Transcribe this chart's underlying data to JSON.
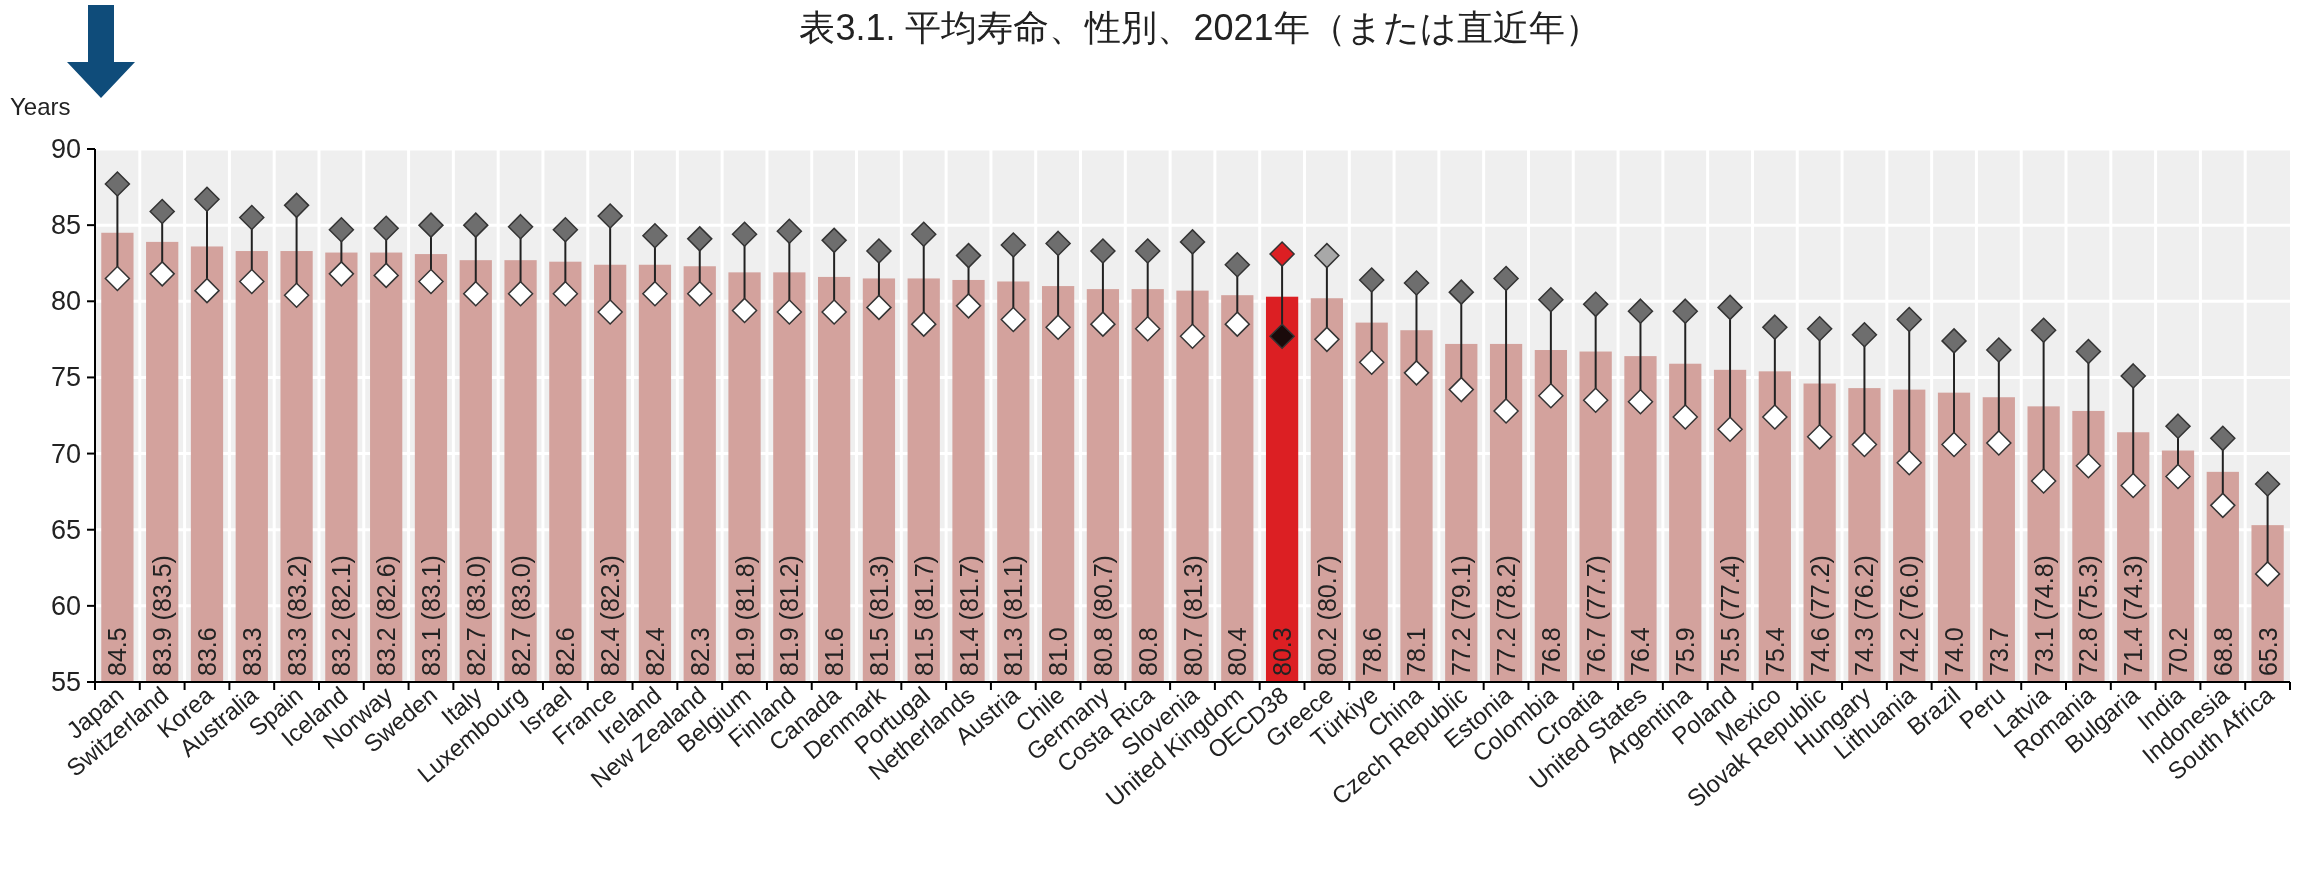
{
  "chart_data": {
    "type": "bar",
    "title": "表3.1. 平均寿命、性別、2021年（または直近年）",
    "ylabel": "Years",
    "categories": [
      "Japan",
      "Switzerland",
      "Korea",
      "Australia",
      "Spain",
      "Iceland",
      "Norway",
      "Sweden",
      "Italy",
      "Luxembourg",
      "Israel",
      "France",
      "Ireland",
      "New Zealand",
      "Belgium",
      "Finland",
      "Canada",
      "Denmark",
      "Portugal",
      "Netherlands",
      "Austria",
      "Chile",
      "Germany",
      "Costa Rica",
      "Slovenia",
      "United Kingdom",
      "OECD38",
      "Greece",
      "Türkiye",
      "China",
      "Czech Republic",
      "Estonia",
      "Colombia",
      "Croatia",
      "United States",
      "Argentina",
      "Poland",
      "Mexico",
      "Slovak Republic",
      "Hungary",
      "Lithuania",
      "Brazil",
      "Peru",
      "Latvia",
      "Romania",
      "Bulgaria",
      "India",
      "Indonesia",
      "South Africa"
    ],
    "ylim": [
      55,
      90
    ],
    "yticks": [
      55,
      60,
      65,
      70,
      75,
      80,
      85,
      90
    ],
    "grid": true,
    "marker": "diamond",
    "series": [
      {
        "colors": [
          "#d3a29d",
          "#d3a29d",
          "#d3a29d",
          "#d3a29d",
          "#d3a29d",
          "#d3a29d",
          "#d3a29d",
          "#d3a29d",
          "#d3a29d",
          "#d3a29d",
          "#d3a29d",
          "#d3a29d",
          "#d3a29d",
          "#d3a29d",
          "#d3a29d",
          "#d3a29d",
          "#d3a29d",
          "#d3a29d",
          "#d3a29d",
          "#d3a29d",
          "#d3a29d",
          "#d3a29d",
          "#d3a29d",
          "#d3a29d",
          "#d3a29d",
          "#d3a29d",
          "#dc1f23",
          "#d3a29d",
          "#d3a29d",
          "#d3a29d",
          "#d3a29d",
          "#d3a29d",
          "#d3a29d",
          "#d3a29d",
          "#d3a29d",
          "#d3a29d",
          "#d3a29d",
          "#d3a29d",
          "#d3a29d",
          "#d3a29d",
          "#d3a29d",
          "#d3a29d",
          "#d3a29d",
          "#d3a29d",
          "#d3a29d",
          "#d3a29d",
          "#d3a29d",
          "#d3a29d",
          "#d3a29d"
        ],
        "values": [
          84.5,
          83.9,
          83.6,
          83.3,
          83.3,
          83.2,
          83.2,
          83.1,
          82.7,
          82.7,
          82.6,
          82.4,
          82.4,
          82.3,
          81.9,
          81.9,
          81.6,
          81.5,
          81.5,
          81.4,
          81.3,
          81.0,
          80.8,
          80.8,
          80.7,
          80.4,
          80.3,
          80.2,
          78.6,
          78.1,
          77.2,
          77.2,
          76.8,
          76.7,
          76.4,
          75.9,
          75.5,
          75.4,
          74.6,
          74.3,
          74.2,
          74.0,
          73.7,
          73.1,
          72.8,
          71.4,
          70.2,
          68.8,
          65.3
        ],
        "value_labels": [
          "84.5",
          "83.9 (83.5)",
          "83.6",
          "83.3",
          "83.3 (83.2)",
          "83.2 (82.1)",
          "83.2 (82.6)",
          "83.1 (83.1)",
          "82.7 (83.0)",
          "82.7 (83.0)",
          "82.6",
          "82.4 (82.3)",
          "82.4",
          "82.3",
          "81.9 (81.8)",
          "81.9 (81.2)",
          "81.6",
          "81.5 (81.3)",
          "81.5 (81.7)",
          "81.4 (81.7)",
          "81.3 (81.1)",
          "81.0",
          "80.8 (80.7)",
          "80.8",
          "80.7 (81.3)",
          "80.4",
          "80.3",
          "80.2 (80.7)",
          "78.6",
          "78.1",
          "77.2 (79.1)",
          "77.2 (78.2)",
          "76.8",
          "76.7 (77.7)",
          "76.4",
          "75.9",
          "75.5 (77.4)",
          "75.4",
          "74.6 (77.2)",
          "74.3 (76.2)",
          "74.2 (76.0)",
          "74.0",
          "73.7",
          "73.1 (74.8)",
          "72.8 (75.3)",
          "71.4 (74.3)",
          "70.2",
          "68.8",
          "65.3"
        ]
      },
      {
        "type": "scatter",
        "colors": [
          "#6e6e6e",
          "#6e6e6e",
          "#6e6e6e",
          "#6e6e6e",
          "#6e6e6e",
          "#6e6e6e",
          "#6e6e6e",
          "#6e6e6e",
          "#6e6e6e",
          "#6e6e6e",
          "#6e6e6e",
          "#6e6e6e",
          "#6e6e6e",
          "#6e6e6e",
          "#6e6e6e",
          "#6e6e6e",
          "#6e6e6e",
          "#6e6e6e",
          "#6e6e6e",
          "#6e6e6e",
          "#6e6e6e",
          "#6e6e6e",
          "#6e6e6e",
          "#6e6e6e",
          "#6e6e6e",
          "#6e6e6e",
          "#dc1f23",
          "#a8a8a8",
          "#6e6e6e",
          "#6e6e6e",
          "#6e6e6e",
          "#6e6e6e",
          "#6e6e6e",
          "#6e6e6e",
          "#6e6e6e",
          "#6e6e6e",
          "#6e6e6e",
          "#6e6e6e",
          "#6e6e6e",
          "#6e6e6e",
          "#6e6e6e",
          "#6e6e6e",
          "#6e6e6e",
          "#6e6e6e",
          "#6e6e6e",
          "#6e6e6e",
          "#6e6e6e",
          "#6e6e6e",
          "#6e6e6e"
        ],
        "values": [
          87.7,
          85.9,
          86.7,
          85.5,
          86.3,
          84.7,
          84.8,
          85.0,
          85.0,
          84.9,
          84.7,
          85.6,
          84.3,
          84.1,
          84.4,
          84.6,
          84.0,
          83.3,
          84.4,
          83.0,
          83.7,
          83.8,
          83.3,
          83.3,
          83.9,
          82.4,
          83.1,
          83.0,
          81.4,
          81.2,
          80.6,
          81.5,
          80.1,
          79.8,
          79.35,
          79.35,
          79.6,
          78.3,
          78.2,
          77.8,
          78.8,
          77.4,
          76.8,
          78.1,
          76.7,
          75.1,
          71.8,
          71.0,
          68.0
        ]
      },
      {
        "type": "scatter",
        "colors": [
          "#ffffff",
          "#ffffff",
          "#ffffff",
          "#ffffff",
          "#ffffff",
          "#ffffff",
          "#ffffff",
          "#ffffff",
          "#ffffff",
          "#ffffff",
          "#ffffff",
          "#ffffff",
          "#ffffff",
          "#ffffff",
          "#ffffff",
          "#ffffff",
          "#ffffff",
          "#ffffff",
          "#ffffff",
          "#ffffff",
          "#ffffff",
          "#ffffff",
          "#ffffff",
          "#ffffff",
          "#ffffff",
          "#ffffff",
          "#1a0a0a",
          "#ffffff",
          "#ffffff",
          "#ffffff",
          "#ffffff",
          "#ffffff",
          "#ffffff",
          "#ffffff",
          "#ffffff",
          "#ffffff",
          "#ffffff",
          "#ffffff",
          "#ffffff",
          "#ffffff",
          "#ffffff",
          "#ffffff",
          "#ffffff",
          "#ffffff",
          "#ffffff",
          "#ffffff",
          "#ffffff",
          "#ffffff",
          "#ffffff"
        ],
        "values": [
          81.5,
          81.8,
          80.7,
          81.3,
          80.4,
          81.8,
          81.7,
          81.3,
          80.5,
          80.5,
          80.5,
          79.3,
          80.5,
          80.5,
          79.4,
          79.3,
          79.3,
          79.6,
          78.5,
          79.7,
          78.8,
          78.3,
          78.5,
          78.2,
          77.7,
          78.5,
          77.7,
          77.5,
          76.0,
          75.3,
          74.2,
          72.8,
          73.8,
          73.5,
          73.4,
          72.4,
          71.6,
          72.4,
          71.1,
          70.6,
          69.4,
          70.6,
          70.7,
          68.2,
          69.2,
          67.9,
          68.5,
          66.6,
          62.1
        ]
      }
    ]
  }
}
